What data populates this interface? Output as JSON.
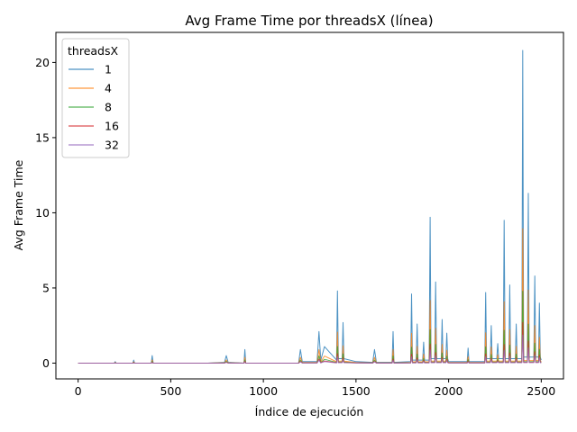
{
  "chart_data": {
    "type": "line",
    "title": "Avg Frame Time por threadsX (línea)",
    "xlabel": "Índice de ejecución",
    "ylabel": "Avg Frame Time",
    "xlim": [
      -120,
      2620
    ],
    "ylim": [
      -1.05,
      22.0
    ],
    "xticks": [
      0,
      500,
      1000,
      1500,
      2000,
      2500
    ],
    "yticks": [
      0,
      5,
      10,
      15,
      20
    ],
    "grid": false,
    "legend": {
      "title": "threadsX",
      "placement": "top-left"
    },
    "series": [
      {
        "name": "1",
        "color": "#1f77b4",
        "scale": 1.0,
        "x": [
          0,
          100,
          195,
          200,
          205,
          295,
          300,
          305,
          395,
          400,
          405,
          450,
          700,
          790,
          800,
          810,
          895,
          900,
          905,
          1100,
          1190,
          1200,
          1210,
          1290,
          1300,
          1310,
          1330,
          1395,
          1400,
          1405,
          1425,
          1430,
          1435,
          1500,
          1590,
          1600,
          1610,
          1695,
          1700,
          1705,
          1795,
          1800,
          1805,
          1825,
          1830,
          1835,
          1860,
          1865,
          1870,
          1895,
          1900,
          1905,
          1925,
          1930,
          1935,
          1960,
          1965,
          1970,
          1985,
          1990,
          1995,
          2000,
          2100,
          2105,
          2110,
          2195,
          2200,
          2205,
          2225,
          2230,
          2235,
          2260,
          2265,
          2270,
          2295,
          2300,
          2305,
          2325,
          2330,
          2335,
          2360,
          2365,
          2370,
          2395,
          2400,
          2405,
          2425,
          2430,
          2435,
          2460,
          2465,
          2470,
          2485,
          2490,
          2495,
          2500
        ],
        "y": [
          0,
          0,
          0,
          0.1,
          0,
          0,
          0.2,
          0,
          0,
          0.5,
          0,
          0,
          0,
          0.05,
          0.5,
          0.05,
          0,
          0.9,
          0,
          0,
          0,
          0.9,
          0.1,
          0.1,
          2.1,
          0.2,
          1.1,
          0.2,
          4.8,
          0.3,
          0.3,
          2.7,
          0.3,
          0.1,
          0.05,
          0.9,
          0.05,
          0.05,
          2.1,
          0.05,
          0.1,
          4.6,
          0.2,
          0.2,
          2.6,
          0.2,
          0.2,
          1.4,
          0.2,
          0.2,
          9.7,
          0.3,
          0.3,
          5.4,
          0.3,
          0.3,
          2.9,
          0.3,
          0.3,
          2.0,
          0.3,
          0.1,
          0.1,
          1.0,
          0.1,
          0.1,
          4.7,
          0.3,
          0.3,
          2.5,
          0.3,
          0.3,
          1.3,
          0.3,
          0.3,
          9.5,
          0.3,
          0.3,
          5.2,
          0.3,
          0.3,
          2.6,
          0.3,
          0.3,
          20.8,
          0.4,
          0.4,
          11.3,
          0.4,
          0.4,
          5.8,
          0.4,
          0.4,
          4.0,
          0.4,
          0.2
        ]
      },
      {
        "name": "4",
        "color": "#ff7f0e",
        "scale": 0.43
      },
      {
        "name": "8",
        "color": "#2ca02c",
        "scale": 0.23
      },
      {
        "name": "16",
        "color": "#d62728",
        "scale": 0.13
      },
      {
        "name": "32",
        "color": "#9467bd",
        "scale": 0.09
      }
    ]
  }
}
